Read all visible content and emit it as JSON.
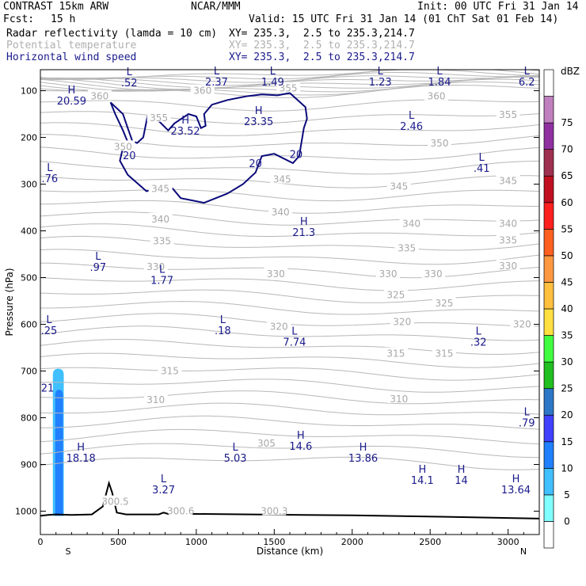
{
  "header": {
    "model": "CONTRAST 15km ARW",
    "org": "NCAR/MMM",
    "init": "Init: 00 UTC Fri 31 Jan 14",
    "fcst_label": "Fcst:",
    "fcst_value": "15 h",
    "valid": "Valid: 15 UTC Fri 31 Jan 14 (01 ChT Sat 01 Feb 14)",
    "field1_name": "Radar reflectivity (lamda = 10 cm)",
    "field1_xy": "XY= 235.3,  2.5 to 235.3,214.7",
    "field2_name": "Potential temperature",
    "field2_xy": "XY= 235.3,  2.5 to 235.3,214.7",
    "field3_name": "Horizontal wind speed",
    "field3_xy": "XY= 235.3,  2.5 to 235.3,214.7",
    "colors": {
      "field1": "#000000",
      "field2": "#b0b0b0",
      "field3": "#1a1a8c"
    }
  },
  "chart_data": {
    "type": "contour",
    "xlabel": "Distance (km)",
    "ylabel": "Pressure (hPa)",
    "xlim": [
      0,
      3200
    ],
    "ylim": [
      1050,
      55
    ],
    "xticks": [
      0,
      500,
      1000,
      1500,
      2000,
      2500,
      3000
    ],
    "yticks": [
      100,
      200,
      300,
      400,
      500,
      600,
      700,
      800,
      900,
      1000
    ],
    "x_end_labels": [
      "S",
      "N"
    ],
    "theta_labels": [
      {
        "x": 380,
        "p": 112,
        "t": "360"
      },
      {
        "x": 1040,
        "p": 100,
        "t": "360"
      },
      {
        "x": 1590,
        "p": 95,
        "t": "355"
      },
      {
        "x": 2540,
        "p": 112,
        "t": "360"
      },
      {
        "x": 760,
        "p": 158,
        "t": "355"
      },
      {
        "x": 3000,
        "p": 152,
        "t": "355"
      },
      {
        "x": 530,
        "p": 220,
        "t": "350"
      },
      {
        "x": 2560,
        "p": 213,
        "t": "350"
      },
      {
        "x": 770,
        "p": 310,
        "t": "345"
      },
      {
        "x": 1550,
        "p": 290,
        "t": "345"
      },
      {
        "x": 2300,
        "p": 305,
        "t": "345"
      },
      {
        "x": 3000,
        "p": 293,
        "t": "345"
      },
      {
        "x": 770,
        "p": 375,
        "t": "340"
      },
      {
        "x": 1540,
        "p": 360,
        "t": "340"
      },
      {
        "x": 2380,
        "p": 385,
        "t": "340"
      },
      {
        "x": 3000,
        "p": 385,
        "t": "340"
      },
      {
        "x": 780,
        "p": 422,
        "t": "335"
      },
      {
        "x": 2350,
        "p": 437,
        "t": "335"
      },
      {
        "x": 3000,
        "p": 420,
        "t": "335"
      },
      {
        "x": 740,
        "p": 477,
        "t": "330"
      },
      {
        "x": 1510,
        "p": 492,
        "t": "330"
      },
      {
        "x": 2230,
        "p": 492,
        "t": "330"
      },
      {
        "x": 2520,
        "p": 492,
        "t": "330"
      },
      {
        "x": 3000,
        "p": 475,
        "t": "330"
      },
      {
        "x": 2280,
        "p": 537,
        "t": "325"
      },
      {
        "x": 2590,
        "p": 555,
        "t": "325"
      },
      {
        "x": 1530,
        "p": 605,
        "t": "320"
      },
      {
        "x": 2320,
        "p": 595,
        "t": "320"
      },
      {
        "x": 3090,
        "p": 600,
        "t": "320"
      },
      {
        "x": 2280,
        "p": 663,
        "t": "315"
      },
      {
        "x": 2590,
        "p": 663,
        "t": "315"
      },
      {
        "x": 830,
        "p": 700,
        "t": "315"
      },
      {
        "x": 740,
        "p": 762,
        "t": "310"
      },
      {
        "x": 2300,
        "p": 760,
        "t": "310"
      },
      {
        "x": 1450,
        "p": 855,
        "t": "305"
      },
      {
        "x": 480,
        "p": 980,
        "t": "300.5"
      },
      {
        "x": 900,
        "p": 1000,
        "t": "300.6"
      },
      {
        "x": 1500,
        "p": 1000,
        "t": "300.3"
      }
    ],
    "wind_labels": [
      {
        "x": 570,
        "p": 240,
        "t": "20"
      },
      {
        "x": 1380,
        "p": 257,
        "t": "20"
      },
      {
        "x": 1640,
        "p": 237,
        "t": "20"
      },
      {
        "x": 0,
        "p": 737,
        "t": "21"
      }
    ],
    "wind_extrema": [
      {
        "kind": "L",
        "x": 570,
        "p": 67,
        "v": ".52"
      },
      {
        "kind": "L",
        "x": 1130,
        "p": 65,
        "v": "2.37"
      },
      {
        "kind": "L",
        "x": 1490,
        "p": 65,
        "v": "1.49"
      },
      {
        "kind": "L",
        "x": 2180,
        "p": 65,
        "v": "1.23"
      },
      {
        "kind": "L",
        "x": 2560,
        "p": 65,
        "v": "1.84"
      },
      {
        "kind": "L",
        "x": 3120,
        "p": 65,
        "v": "6.2"
      },
      {
        "kind": "H",
        "x": 200,
        "p": 106,
        "v": "20.59"
      },
      {
        "kind": "H",
        "x": 930,
        "p": 170,
        "v": "23.52"
      },
      {
        "kind": "H",
        "x": 1400,
        "p": 150,
        "v": "23.35"
      },
      {
        "kind": "L",
        "x": 2380,
        "p": 160,
        "v": "2.46"
      },
      {
        "kind": "L",
        "x": 60,
        "p": 272,
        "v": ".76"
      },
      {
        "kind": "L",
        "x": 2830,
        "p": 250,
        "v": ".41"
      },
      {
        "kind": "H",
        "x": 1690,
        "p": 387,
        "v": "21.3"
      },
      {
        "kind": "L",
        "x": 370,
        "p": 462,
        "v": ".97"
      },
      {
        "kind": "L",
        "x": 780,
        "p": 490,
        "v": "1.77"
      },
      {
        "kind": "L",
        "x": 20,
        "p": 597,
        "v": ".25"
      },
      {
        "kind": "L",
        "x": 1170,
        "p": 597,
        "v": ".18"
      },
      {
        "kind": "L",
        "x": 1630,
        "p": 622,
        "v": "7.74"
      },
      {
        "kind": "L",
        "x": 2810,
        "p": 622,
        "v": ".32"
      },
      {
        "kind": "L",
        "x": 3120,
        "p": 795,
        "v": ".79"
      },
      {
        "kind": "H",
        "x": 1670,
        "p": 845,
        "v": "14.6"
      },
      {
        "kind": "H",
        "x": 260,
        "p": 870,
        "v": "18.18"
      },
      {
        "kind": "L",
        "x": 1250,
        "p": 870,
        "v": "5.03"
      },
      {
        "kind": "H",
        "x": 2070,
        "p": 870,
        "v": "13.86"
      },
      {
        "kind": "H",
        "x": 2450,
        "p": 918,
        "v": "14.1"
      },
      {
        "kind": "H",
        "x": 2700,
        "p": 918,
        "v": "14"
      },
      {
        "kind": "H",
        "x": 3050,
        "p": 938,
        "v": "13.64"
      },
      {
        "kind": "L",
        "x": 790,
        "p": 938,
        "v": "3.27"
      }
    ],
    "jet_contour": [
      [
        450,
        125
      ],
      [
        480,
        150
      ],
      [
        530,
        185
      ],
      [
        560,
        210
      ],
      [
        530,
        222
      ],
      [
        510,
        250
      ],
      [
        560,
        280
      ],
      [
        680,
        315
      ],
      [
        750,
        310
      ],
      [
        800,
        300
      ],
      [
        850,
        310
      ],
      [
        900,
        330
      ],
      [
        1050,
        340
      ],
      [
        1200,
        320
      ],
      [
        1300,
        300
      ],
      [
        1380,
        275
      ],
      [
        1420,
        240
      ],
      [
        1500,
        235
      ],
      [
        1620,
        255
      ],
      [
        1660,
        240
      ],
      [
        1690,
        180
      ],
      [
        1710,
        160
      ],
      [
        1700,
        135
      ],
      [
        1600,
        105
      ],
      [
        1520,
        110
      ],
      [
        1420,
        108
      ],
      [
        1320,
        112
      ],
      [
        1200,
        120
      ],
      [
        1100,
        130
      ],
      [
        1050,
        150
      ],
      [
        1060,
        175
      ],
      [
        1030,
        180
      ],
      [
        1000,
        155
      ],
      [
        950,
        150
      ],
      [
        860,
        170
      ],
      [
        820,
        185
      ],
      [
        760,
        165
      ],
      [
        720,
        150
      ],
      [
        690,
        150
      ],
      [
        660,
        200
      ],
      [
        620,
        212
      ],
      [
        590,
        208
      ],
      [
        560,
        180
      ],
      [
        530,
        150
      ],
      [
        450,
        125
      ]
    ],
    "colorbar": {
      "unit": "dBZ",
      "levels": [
        0,
        5,
        10,
        15,
        20,
        25,
        30,
        35,
        40,
        45,
        50,
        55,
        60,
        65,
        70,
        75
      ],
      "colors": [
        "#ffffff",
        "#80ffff",
        "#40c0ff",
        "#2080ff",
        "#4040ff",
        "#2d77c8",
        "#20c020",
        "#40ff40",
        "#ffe040",
        "#ffc040",
        "#ff9840",
        "#ff6020",
        "#ff2020",
        "#c01020",
        "#a03050",
        "#9030a0",
        "#c080c0",
        "#ffffff"
      ]
    },
    "reflectivity": [
      {
        "x0": 80,
        "x1": 150,
        "p_top": 695,
        "dbz": 5
      },
      {
        "x0": 95,
        "x1": 145,
        "p_top": 740,
        "dbz": 10
      }
    ],
    "terrain": [
      [
        0,
        1010
      ],
      [
        50,
        1008
      ],
      [
        100,
        1007
      ],
      [
        200,
        1008
      ],
      [
        330,
        1007
      ],
      [
        400,
        990
      ],
      [
        420,
        965
      ],
      [
        440,
        940
      ],
      [
        460,
        960
      ],
      [
        490,
        1003
      ],
      [
        550,
        1007
      ],
      [
        760,
        1007
      ],
      [
        790,
        1003
      ],
      [
        820,
        1006
      ],
      [
        1000,
        1006
      ],
      [
        2000,
        1009
      ],
      [
        2600,
        1012
      ],
      [
        3200,
        1016
      ]
    ]
  }
}
